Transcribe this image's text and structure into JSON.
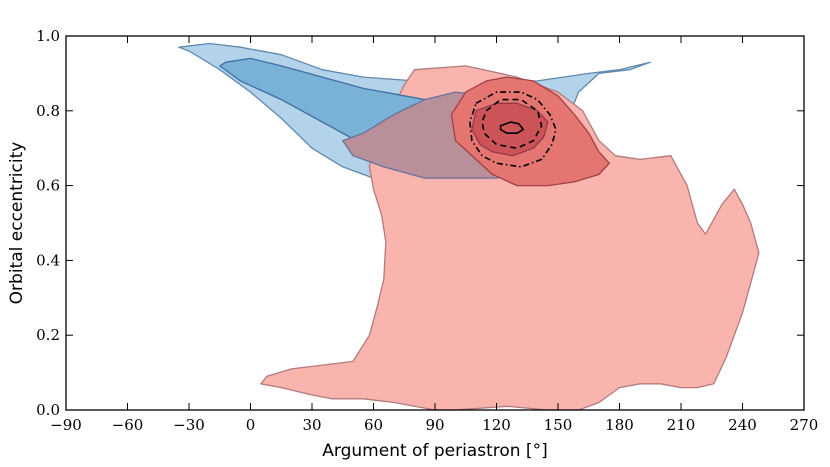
{
  "chart_data": {
    "type": "contour",
    "xlabel": "Argument of periastron [°]",
    "ylabel": "Orbital eccentricity",
    "xlim": [
      -90,
      270
    ],
    "ylim": [
      0.0,
      1.0
    ],
    "x_ticks": [
      -90,
      -60,
      -30,
      0,
      30,
      60,
      90,
      120,
      150,
      180,
      210,
      240,
      270
    ],
    "x_tick_labels": [
      "−90",
      "−60",
      "−30",
      "0",
      "30",
      "60",
      "90",
      "120",
      "150",
      "180",
      "210",
      "240",
      "270"
    ],
    "y_ticks": [
      0.0,
      0.2,
      0.4,
      0.6,
      0.8,
      1.0
    ],
    "y_tick_labels": [
      "0.0",
      "0.2",
      "0.4",
      "0.6",
      "0.8",
      "1.0"
    ],
    "grid": false,
    "series": [
      {
        "color": "#b2d3ea",
        "edge": "#5f89ad",
        "points": [
          [
            -35,
            0.97
          ],
          [
            -20,
            0.98
          ],
          [
            -5,
            0.97
          ],
          [
            15,
            0.95
          ],
          [
            35,
            0.91
          ],
          [
            55,
            0.89
          ],
          [
            80,
            0.88
          ],
          [
            110,
            0.87
          ],
          [
            140,
            0.88
          ],
          [
            165,
            0.9
          ],
          [
            180,
            0.91
          ],
          [
            195,
            0.93
          ],
          [
            185,
            0.91
          ],
          [
            170,
            0.9
          ],
          [
            160,
            0.85
          ],
          [
            155,
            0.78
          ],
          [
            140,
            0.73
          ],
          [
            130,
            0.7
          ],
          [
            120,
            0.66
          ],
          [
            105,
            0.62
          ],
          [
            85,
            0.61
          ],
          [
            60,
            0.62
          ],
          [
            45,
            0.65
          ],
          [
            30,
            0.7
          ],
          [
            15,
            0.78
          ],
          [
            0,
            0.85
          ],
          [
            -15,
            0.91
          ],
          [
            -30,
            0.96
          ]
        ]
      },
      {
        "color": "#f9b4ae",
        "edge": "#b27a7f",
        "points": [
          [
            80,
            0.91
          ],
          [
            105,
            0.92
          ],
          [
            130,
            0.89
          ],
          [
            150,
            0.85
          ],
          [
            162,
            0.8
          ],
          [
            170,
            0.72
          ],
          [
            178,
            0.68
          ],
          [
            190,
            0.67
          ],
          [
            205,
            0.68
          ],
          [
            213,
            0.6
          ],
          [
            218,
            0.5
          ],
          [
            222,
            0.47
          ],
          [
            230,
            0.55
          ],
          [
            236,
            0.59
          ],
          [
            240,
            0.55
          ],
          [
            244,
            0.5
          ],
          [
            248,
            0.42
          ],
          [
            245,
            0.36
          ],
          [
            240,
            0.26
          ],
          [
            236,
            0.2
          ],
          [
            232,
            0.14
          ],
          [
            226,
            0.07
          ],
          [
            218,
            0.06
          ],
          [
            210,
            0.06
          ],
          [
            200,
            0.07
          ],
          [
            190,
            0.07
          ],
          [
            180,
            0.06
          ],
          [
            170,
            0.02
          ],
          [
            160,
            0.0
          ],
          [
            145,
            0.0
          ],
          [
            125,
            0.01
          ],
          [
            100,
            0.0
          ],
          [
            90,
            0.0
          ],
          [
            70,
            0.02
          ],
          [
            55,
            0.03
          ],
          [
            40,
            0.03
          ],
          [
            30,
            0.04
          ],
          [
            15,
            0.06
          ],
          [
            5,
            0.07
          ],
          [
            8,
            0.09
          ],
          [
            20,
            0.11
          ],
          [
            35,
            0.12
          ],
          [
            50,
            0.13
          ],
          [
            58,
            0.2
          ],
          [
            62,
            0.28
          ],
          [
            65,
            0.35
          ],
          [
            66,
            0.45
          ],
          [
            64,
            0.52
          ],
          [
            60,
            0.59
          ],
          [
            58,
            0.65
          ],
          [
            60,
            0.71
          ],
          [
            68,
            0.79
          ],
          [
            75,
            0.87
          ]
        ]
      },
      {
        "color": "#7ab1d6",
        "edge": "#3f6fa3",
        "points": [
          [
            -12,
            0.93
          ],
          [
            0,
            0.94
          ],
          [
            15,
            0.92
          ],
          [
            35,
            0.89
          ],
          [
            55,
            0.86
          ],
          [
            75,
            0.84
          ],
          [
            95,
            0.82
          ],
          [
            108,
            0.81
          ],
          [
            122,
            0.8
          ],
          [
            135,
            0.79
          ],
          [
            140,
            0.77
          ],
          [
            136,
            0.75
          ],
          [
            125,
            0.73
          ],
          [
            110,
            0.71
          ],
          [
            95,
            0.7
          ],
          [
            75,
            0.69
          ],
          [
            55,
            0.71
          ],
          [
            35,
            0.77
          ],
          [
            15,
            0.83
          ],
          [
            -5,
            0.88
          ],
          [
            -15,
            0.92
          ]
        ]
      },
      {
        "color": "#b9909a",
        "edge": "#67729a",
        "points": [
          [
            55,
            0.74
          ],
          [
            70,
            0.79
          ],
          [
            85,
            0.83
          ],
          [
            100,
            0.85
          ],
          [
            115,
            0.84
          ],
          [
            125,
            0.81
          ],
          [
            132,
            0.77
          ],
          [
            135,
            0.73
          ],
          [
            140,
            0.7
          ],
          [
            150,
            0.67
          ],
          [
            135,
            0.64
          ],
          [
            120,
            0.62
          ],
          [
            105,
            0.62
          ],
          [
            85,
            0.62
          ],
          [
            65,
            0.65
          ],
          [
            50,
            0.68
          ],
          [
            45,
            0.72
          ]
        ]
      },
      {
        "color": "#e47570",
        "edge": "#a33f44",
        "points": [
          [
            105,
            0.85
          ],
          [
            115,
            0.88
          ],
          [
            125,
            0.89
          ],
          [
            138,
            0.88
          ],
          [
            150,
            0.84
          ],
          [
            158,
            0.79
          ],
          [
            165,
            0.74
          ],
          [
            170,
            0.69
          ],
          [
            175,
            0.66
          ],
          [
            170,
            0.63
          ],
          [
            158,
            0.61
          ],
          [
            145,
            0.6
          ],
          [
            130,
            0.6
          ],
          [
            118,
            0.63
          ],
          [
            110,
            0.67
          ],
          [
            100,
            0.72
          ],
          [
            98,
            0.79
          ]
        ]
      },
      {
        "color": "#cc5458",
        "edge": "#8f3a44",
        "points": [
          [
            110,
            0.8
          ],
          [
            120,
            0.82
          ],
          [
            130,
            0.82
          ],
          [
            140,
            0.8
          ],
          [
            145,
            0.77
          ],
          [
            143,
            0.73
          ],
          [
            138,
            0.7
          ],
          [
            128,
            0.68
          ],
          [
            118,
            0.69
          ],
          [
            112,
            0.71
          ],
          [
            108,
            0.75
          ]
        ]
      }
    ],
    "contour_lines": [
      {
        "style": "dashdot",
        "points": [
          [
            110,
            0.82
          ],
          [
            120,
            0.85
          ],
          [
            132,
            0.85
          ],
          [
            140,
            0.83
          ],
          [
            146,
            0.79
          ],
          [
            149,
            0.75
          ],
          [
            147,
            0.71
          ],
          [
            142,
            0.67
          ],
          [
            132,
            0.65
          ],
          [
            120,
            0.66
          ],
          [
            113,
            0.68
          ],
          [
            108,
            0.72
          ],
          [
            107,
            0.77
          ]
        ]
      },
      {
        "style": "dashed",
        "points": [
          [
            115,
            0.8
          ],
          [
            122,
            0.83
          ],
          [
            132,
            0.83
          ],
          [
            140,
            0.8
          ],
          [
            142,
            0.76
          ],
          [
            138,
            0.72
          ],
          [
            130,
            0.7
          ],
          [
            120,
            0.71
          ],
          [
            114,
            0.74
          ],
          [
            113,
            0.77
          ]
        ]
      },
      {
        "style": "solid",
        "points": [
          [
            122,
            0.76
          ],
          [
            127,
            0.77
          ],
          [
            131,
            0.765
          ],
          [
            133,
            0.75
          ],
          [
            130,
            0.74
          ],
          [
            125,
            0.74
          ],
          [
            122,
            0.75
          ]
        ]
      }
    ]
  }
}
